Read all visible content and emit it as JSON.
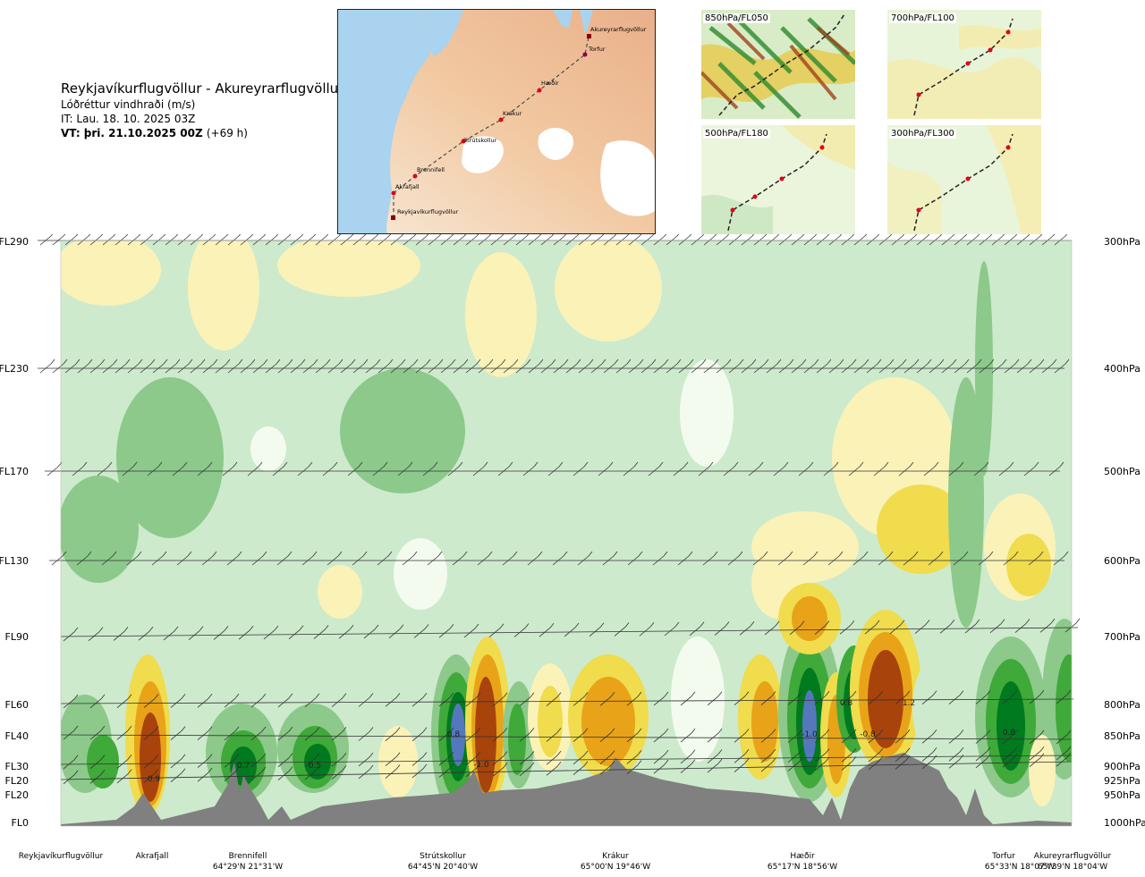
{
  "header": {
    "title": "Reykjavíkurflugvöllur - Akureyrarflugvöllur",
    "subtitle": "Lóðréttur vindhraði (m/s)",
    "issue_time": "IT: Lau. 18. 10. 2025 03Z",
    "valid_time": "VT: þri. 21.10.2025 00Z",
    "valid_offset": "(+69 h)"
  },
  "route_map": {
    "waypoints": [
      "Akureyrarflugvöllur",
      "Torfur",
      "Hæðir",
      "Krákur",
      "Strútskollur",
      "Brennifell",
      "Akrafjall",
      "Reykjavíkurflugvöllur"
    ]
  },
  "mini_maps": [
    {
      "label": "850hPa/FL050"
    },
    {
      "label": "700hPa/FL100"
    },
    {
      "label": "500hPa/FL180"
    },
    {
      "label": "300hPa/FL300"
    }
  ],
  "colors": {
    "up_strong": "#007a1e",
    "up_mid": "#3fa93a",
    "up_weak": "#8cc98a",
    "up_faint": "#cdeacd",
    "neutral": "#f3fbee",
    "down_faint": "#fbf2b8",
    "down_weak": "#f0dc4c",
    "down_mid": "#e8a318",
    "down_strong": "#a8430c",
    "extreme_up": "#5577bb",
    "terrain": "#808080"
  },
  "chart_data": {
    "type": "heatmap",
    "title": "Reykjavíkurflugvöllur - Akureyrarflugvöllur",
    "quantity": "Lóðréttur vindhraði (m/s)",
    "flight_levels": [
      {
        "fl": "FL290",
        "hpa": "300hPa"
      },
      {
        "fl": "FL230",
        "hpa": "400hPa"
      },
      {
        "fl": "FL170",
        "hpa": "500hPa"
      },
      {
        "fl": "FL130",
        "hpa": "600hPa"
      },
      {
        "fl": "FL90",
        "hpa": "700hPa"
      },
      {
        "fl": "FL60",
        "hpa": "800hPa"
      },
      {
        "fl": "FL40",
        "hpa": "850hPa"
      },
      {
        "fl": "FL30",
        "hpa": "900hPa"
      },
      {
        "fl": "FL20",
        "hpa": "925hPa"
      },
      {
        "fl": "FL20",
        "hpa": "950hPa"
      },
      {
        "fl": "FL0",
        "hpa": "1000hPa"
      }
    ],
    "waypoints": [
      {
        "name": "Reykjavíkurflugvöllur",
        "coord": ""
      },
      {
        "name": "Akrafjall",
        "coord": ""
      },
      {
        "name": "Brennifell",
        "coord": "64°29'N 21°31'W"
      },
      {
        "name": "Strútskollur",
        "coord": "64°45'N 20°40'W"
      },
      {
        "name": "Krákur",
        "coord": "65°00'N 19°46'W"
      },
      {
        "name": "Hæðir",
        "coord": "65°17'N 18°56'W"
      },
      {
        "name": "Torfur",
        "coord": "65°33'N 18°07'W"
      },
      {
        "name": "Akureyrarflugvöllur",
        "coord": "65°39'N 18°04'W"
      }
    ],
    "contour_labels": [
      "0.9",
      "0.7",
      "0.5",
      "0.8",
      "-1.0",
      "-1.0",
      "0.8",
      "-0.8",
      "1.2",
      "0.8"
    ]
  }
}
